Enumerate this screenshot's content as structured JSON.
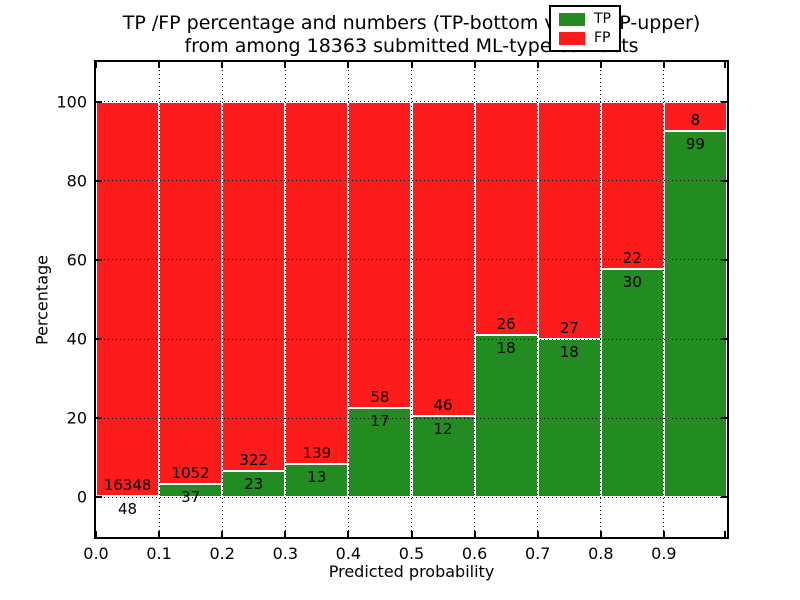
{
  "title": {
    "line1": "TP /FP percentage and numbers (TP-bottom value, FP-upper)",
    "line2": "from among 18363 submitted ML-type contacts"
  },
  "axes": {
    "xlabel": "Predicted probability",
    "ylabel": "Percentage",
    "x_tick_labels": [
      "0.0",
      "0.1",
      "0.2",
      "0.3",
      "0.4",
      "0.5",
      "0.6",
      "0.7",
      "0.8",
      "0.9"
    ],
    "y_tick_labels": [
      "0",
      "20",
      "40",
      "60",
      "80",
      "100"
    ],
    "y_tick_values": [
      0,
      20,
      40,
      60,
      80,
      100
    ]
  },
  "legend": {
    "items": [
      {
        "label": "TP",
        "color": "#228b22"
      },
      {
        "label": "FP",
        "color": "#fc1c1c"
      }
    ],
    "position": "upper right"
  },
  "chart_data": {
    "type": "bar",
    "stacked": true,
    "normalized": "each bin scaled to 100%",
    "title": "TP /FP percentage and numbers (TP-bottom value, FP-upper) from among 18363 submitted ML-type contacts",
    "xlabel": "Predicted probability",
    "ylabel": "Percentage",
    "xlim": [
      0.0,
      1.0
    ],
    "ylim": [
      -10,
      110
    ],
    "bin_width": 0.1,
    "bin_starts": [
      0.0,
      0.1,
      0.2,
      0.3,
      0.4,
      0.5,
      0.6,
      0.7,
      0.8,
      0.9
    ],
    "series": [
      {
        "name": "TP",
        "color": "#228b22",
        "counts": [
          48,
          37,
          23,
          13,
          17,
          12,
          18,
          18,
          30,
          99
        ]
      },
      {
        "name": "FP",
        "color": "#fc1c1c",
        "counts": [
          16348,
          1052,
          322,
          139,
          58,
          46,
          26,
          27,
          22,
          8
        ]
      }
    ],
    "tp_percent_per_bin": [
      0.29,
      3.4,
      6.67,
      8.55,
      22.67,
      20.69,
      40.91,
      40.0,
      57.69,
      92.52
    ],
    "total_contacts": 18363,
    "grid": "black dotted, x and y major ticks",
    "bar_edge_color": "#ffffff",
    "legend_position": "upper right"
  }
}
